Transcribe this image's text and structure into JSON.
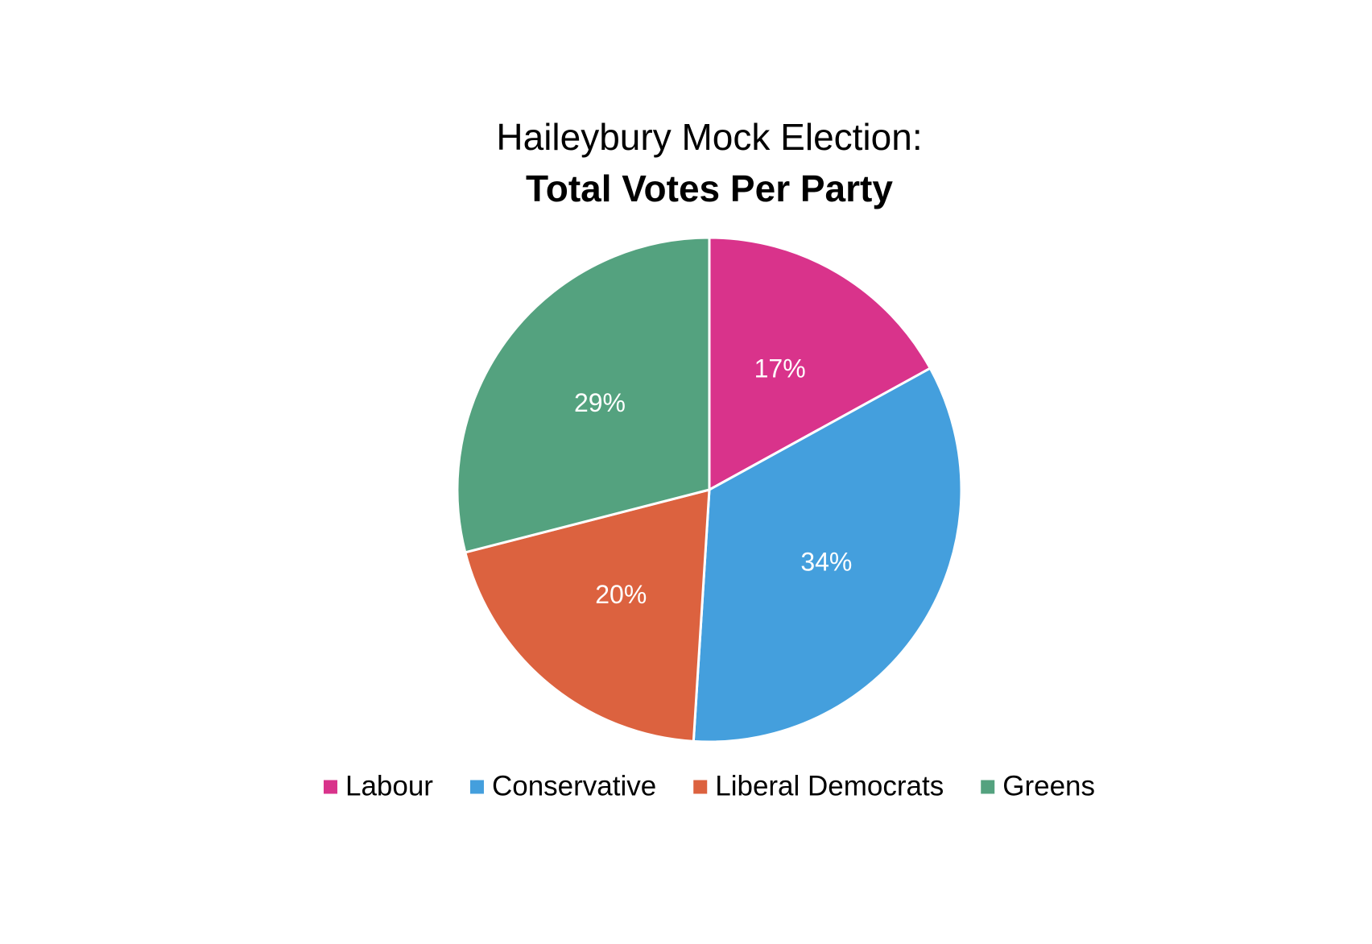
{
  "chart_data": {
    "type": "pie",
    "title": "Haileybury Mock Election:",
    "subtitle": "Total Votes Per Party",
    "categories": [
      "Labour",
      "Conservative",
      "Liberal Democrats",
      "Greens"
    ],
    "values": [
      17,
      34,
      20,
      29
    ],
    "value_labels": [
      "17%",
      "34%",
      "20%",
      "29%"
    ],
    "colors": [
      "#d9338b",
      "#449fdd",
      "#dc623f",
      "#54a27f"
    ],
    "legend": "bottom"
  }
}
